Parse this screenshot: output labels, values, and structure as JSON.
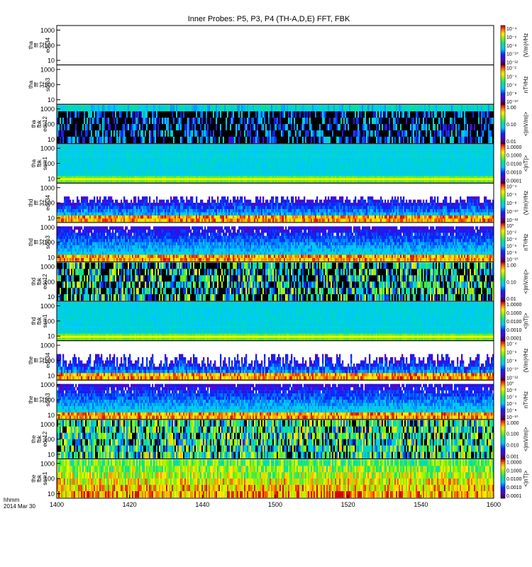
{
  "chart_data": {
    "type": "heatmap",
    "title": "Inner Probes: P5, P3, P4 (TH-A,D,E) FFT, FBK",
    "x_axis": {
      "range": [
        1400,
        1600
      ],
      "tick_labels": [
        "1400",
        "1420",
        "1440",
        "1500",
        "1520",
        "1540",
        "1600"
      ],
      "label_lines": [
        "hhmm",
        "2014 Mar 30"
      ]
    },
    "panels": [
      {
        "label_lines": [
          "tha",
          "fff",
          "32",
          "edc34"
        ],
        "yticks": [
          "1000",
          "100",
          "10"
        ],
        "colorbar_ticks": [
          "10⁻⁴",
          "10⁻⁶",
          "10⁻⁸",
          "10⁻¹⁰",
          "10⁻¹²"
        ],
        "colorbar_label": "(V/m)²/Hz",
        "texture": "empty"
      },
      {
        "label_lines": [
          "tha",
          "fff",
          "32",
          "scm3"
        ],
        "yticks": [
          "1000",
          "100",
          "10"
        ],
        "colorbar_ticks": [
          "10⁻²",
          "10⁻⁴",
          "10⁻⁶",
          "10⁻⁸",
          "10⁻¹⁰"
        ],
        "colorbar_label": "nT²/Hz",
        "texture": "empty"
      },
      {
        "label_lines": [
          "tha",
          "fbk",
          "edc12"
        ],
        "yticks": [
          "1000",
          "100",
          "10"
        ],
        "colorbar_ticks": [
          "1.00",
          "0.10",
          "0.01"
        ],
        "colorbar_label": "<|mV/m|>",
        "texture": "fbk_e_sparse"
      },
      {
        "label_lines": [
          "tha",
          "fbk",
          "scm1"
        ],
        "yticks": [
          "1000",
          "100",
          "10"
        ],
        "colorbar_ticks": [
          "1.0000",
          "0.1000",
          "0.0100",
          "0.0010",
          "0.0001"
        ],
        "colorbar_label": "<|nT|>",
        "texture": "fbk_b_smooth"
      },
      {
        "label_lines": [
          "thd",
          "fff",
          "32",
          "edc34"
        ],
        "yticks": [
          "1000",
          "100",
          "10"
        ],
        "colorbar_ticks": [
          "10⁻⁴",
          "10⁻⁶",
          "10⁻⁸",
          "10⁻¹⁰",
          "10⁻¹²"
        ],
        "colorbar_label": "(V/m)²/Hz",
        "texture": "fff_e_patchy"
      },
      {
        "label_lines": [
          "thd",
          "fff",
          "32",
          "scm3"
        ],
        "yticks": [
          "1000",
          "100",
          "10"
        ],
        "colorbar_ticks": [
          "10°",
          "10⁻²",
          "10⁻⁴",
          "10⁻⁶",
          "10⁻⁸",
          "10⁻¹⁰"
        ],
        "colorbar_label": "nT²/Hz",
        "texture": "fff_b_dense"
      },
      {
        "label_lines": [
          "thd",
          "fbk",
          "edc12"
        ],
        "yticks": [
          "1000",
          "100",
          "10"
        ],
        "colorbar_ticks": [
          "1.00",
          "0.10",
          "0.01"
        ],
        "colorbar_label": "<|mV/m|>",
        "texture": "fbk_e_mixed"
      },
      {
        "label_lines": [
          "thd",
          "fbk",
          "scm1"
        ],
        "yticks": [
          "1000",
          "100",
          "10"
        ],
        "colorbar_ticks": [
          "1.0000",
          "0.1000",
          "0.0100",
          "0.0010",
          "0.0001"
        ],
        "colorbar_label": "<|nT|>",
        "texture": "fbk_b_smooth"
      },
      {
        "label_lines": [
          "the",
          "fff",
          "32",
          "edc34"
        ],
        "yticks": [
          "1000",
          "100",
          "10"
        ],
        "colorbar_ticks": [
          "10⁻⁴",
          "10⁻⁶",
          "10⁻⁸",
          "10⁻¹⁰",
          "10⁻¹²"
        ],
        "colorbar_label": "(V/m)²/Hz",
        "texture": "fff_e_spiky"
      },
      {
        "label_lines": [
          "the",
          "fff",
          "32",
          "scm3"
        ],
        "yticks": [
          "1000",
          "100",
          "10"
        ],
        "colorbar_ticks": [
          "10°",
          "10⁻²",
          "10⁻⁴",
          "10⁻⁶",
          "10⁻⁸",
          "10⁻¹⁰"
        ],
        "colorbar_label": "nT²/Hz",
        "texture": "fff_b_dense"
      },
      {
        "label_lines": [
          "the",
          "fbk",
          "edc12"
        ],
        "yticks": [
          "1000",
          "100",
          "10"
        ],
        "colorbar_ticks": [
          "1.000",
          "0.100",
          "0.010",
          "0.001"
        ],
        "colorbar_label": "<|mV/m|>",
        "texture": "fbk_e_hot"
      },
      {
        "label_lines": [
          "the",
          "fbk",
          "scm1"
        ],
        "yticks": [
          "1000",
          "100",
          "10"
        ],
        "colorbar_ticks": [
          "1.0000",
          "0.1000",
          "0.0100",
          "0.0010",
          "0.0001"
        ],
        "colorbar_label": "<|nT|>",
        "texture": "fbk_b_hot"
      }
    ]
  }
}
